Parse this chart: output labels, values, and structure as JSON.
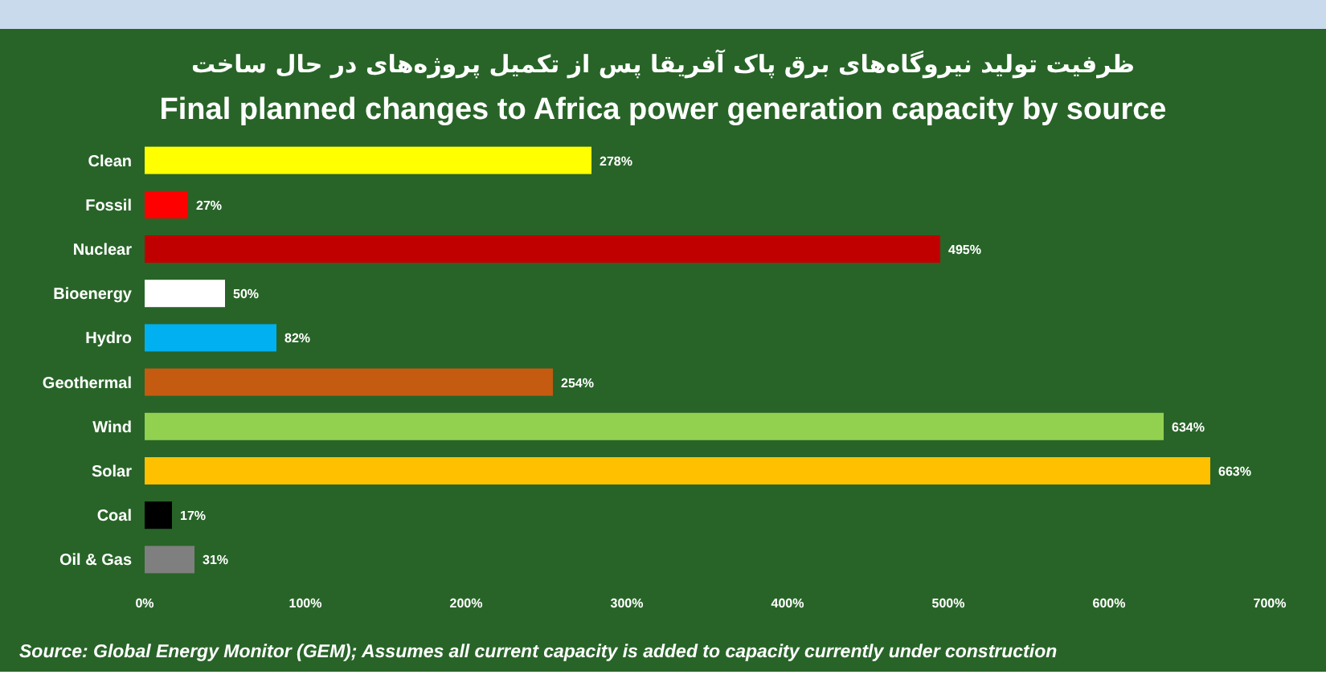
{
  "chart_data": {
    "type": "bar",
    "orientation": "horizontal",
    "title": "ظرفیت تولید نیروگاه‌های برق پاک آفریقا پس از تکمیل پروژه‌های در حال ساخت",
    "subtitle": "Final planned changes to Africa power generation capacity by source",
    "categories": [
      "Clean",
      "Fossil",
      "Nuclear",
      "Bioenergy",
      "Hydro",
      "Geothermal",
      "Wind",
      "Solar",
      "Coal",
      "Oil & Gas"
    ],
    "values": [
      278,
      27,
      495,
      50,
      82,
      254,
      634,
      663,
      17,
      31
    ],
    "colors": [
      "#ffff00",
      "#ff0000",
      "#c00000",
      "#ffffff",
      "#00b0f0",
      "#c55a11",
      "#92d050",
      "#ffc000",
      "#000000",
      "#7f7f7f"
    ],
    "value_labels": [
      "278%",
      "27%",
      "495%",
      "50%",
      "82%",
      "254%",
      "634%",
      "663%",
      "17%",
      "31%"
    ],
    "xlim": [
      0,
      700
    ],
    "xticks": [
      {
        "value": 0,
        "label": "0%"
      },
      {
        "value": 100,
        "label": "100%"
      },
      {
        "value": 200,
        "label": "200%"
      },
      {
        "value": 300,
        "label": "300%"
      },
      {
        "value": 400,
        "label": "400%"
      },
      {
        "value": 500,
        "label": "500%"
      },
      {
        "value": 600,
        "label": "600%"
      },
      {
        "value": 700,
        "label": "700%"
      }
    ],
    "annotations": [
      "Source: Global Energy Monitor (GEM); Assumes all current capacity is added to capacity currently under construction"
    ],
    "grid": false,
    "legend": false
  }
}
